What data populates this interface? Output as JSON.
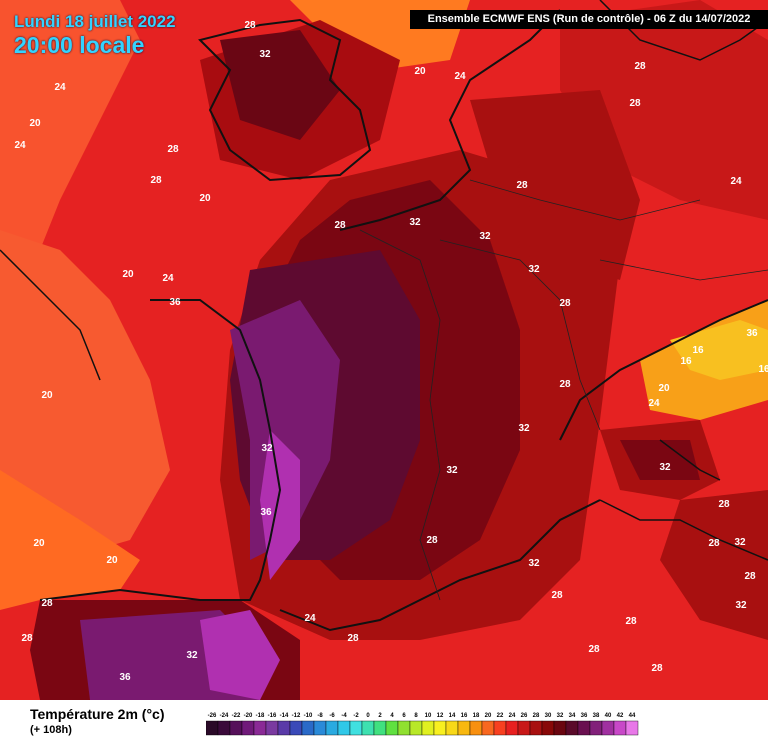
{
  "header": {
    "date": "Lundi 18 juillet 2022",
    "time": "20:00 locale",
    "model": "Ensemble ECMWF ENS  (Run de contrôle)  -  06 Z du 14/07/2022"
  },
  "footer": {
    "variable": "Température 2m (°c)",
    "lead": "(+ 108h)"
  },
  "colorbar": {
    "ticks": [
      "-26",
      "-24",
      "-22",
      "-20",
      "-18",
      "-16",
      "-14",
      "-12",
      "-10",
      "-8",
      "-6",
      "-4",
      "-2",
      "0",
      "2",
      "4",
      "6",
      "8",
      "10",
      "12",
      "14",
      "16",
      "18",
      "20",
      "22",
      "24",
      "26",
      "28",
      "30",
      "32",
      "34",
      "36",
      "38",
      "40",
      "42",
      "44"
    ],
    "colors": [
      "#2a0a28",
      "#3a0a3a",
      "#55105a",
      "#701a7a",
      "#8a2a96",
      "#7a3aa0",
      "#5a3aa8",
      "#3a4ab8",
      "#2a6ac8",
      "#2a8ad8",
      "#2aaae0",
      "#30c8e8",
      "#40e0e0",
      "#3ee0b0",
      "#40e080",
      "#60e040",
      "#90e030",
      "#b8e828",
      "#e0f020",
      "#f8f020",
      "#f8d818",
      "#f8b810",
      "#f89010",
      "#f86820",
      "#f84020",
      "#e82020",
      "#c81818",
      "#a81010",
      "#880808",
      "#6a0610",
      "#5a0a2a",
      "#6a1050",
      "#82207a",
      "#a030a0",
      "#c848c8",
      "#e878e8"
    ]
  },
  "map": {
    "iso_labels": [
      "28",
      "32",
      "24",
      "20",
      "28",
      "24",
      "20",
      "24",
      "28",
      "28",
      "28",
      "20",
      "32",
      "28",
      "32",
      "32",
      "28",
      "24",
      "20",
      "24",
      "36",
      "28",
      "20",
      "36",
      "16",
      "16",
      "16",
      "20",
      "28",
      "24",
      "32",
      "32",
      "32",
      "28",
      "36",
      "28",
      "32",
      "28",
      "20",
      "20",
      "28",
      "32",
      "24",
      "28",
      "28",
      "28",
      "28",
      "32",
      "32",
      "28",
      "36",
      "28",
      "28",
      "32"
    ],
    "colors": {
      "sea_warm": "#e8202a",
      "sea_mild": "#f84a30",
      "atlantic": "#ff6a28",
      "land_hot": "#a81010",
      "land_hotter": "#7a0612",
      "land_extreme": "#5e0a30",
      "peak": "#7a1a70",
      "peak_bright": "#b030b0",
      "alps_cool": "#f89010"
    }
  }
}
